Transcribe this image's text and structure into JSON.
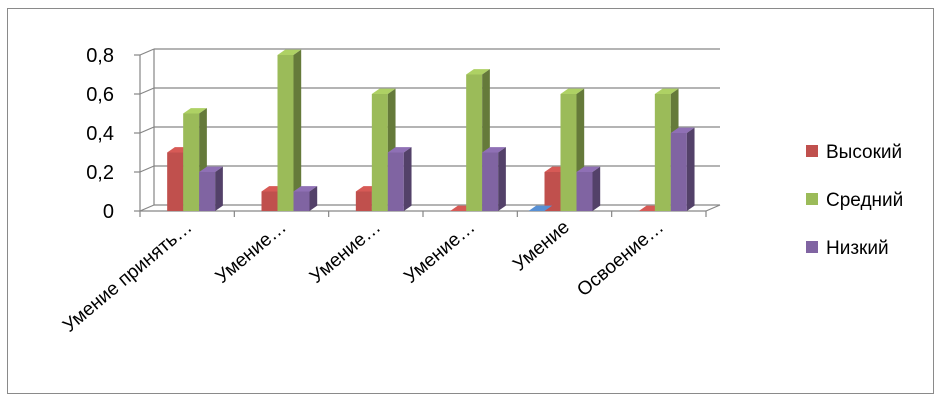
{
  "chart_data": {
    "type": "bar",
    "style": "3d-clustered-column",
    "categories": [
      "Умение принять…",
      "Умение…",
      "Умение…",
      "Умение…",
      "Умение",
      "Освоение…"
    ],
    "series": [
      {
        "name": "Высокий",
        "color": "#c0504d",
        "values": [
          0.3,
          0.1,
          0.1,
          0,
          0.2,
          0
        ]
      },
      {
        "name": "Средний",
        "color": "#9bbb59",
        "values": [
          0.5,
          0.8,
          0.6,
          0.7,
          0.6,
          0.6
        ]
      },
      {
        "name": "Низкий",
        "color": "#8064a2",
        "values": [
          0.2,
          0.1,
          0.3,
          0.3,
          0.2,
          0.4
        ]
      }
    ],
    "extra_marks": [
      {
        "category_index": 4,
        "color": "#4f81bd",
        "value": 0
      }
    ],
    "y_ticks": [
      "0",
      "0,2",
      "0,4",
      "0,6",
      "0,8"
    ],
    "ylim": [
      0,
      0.8
    ],
    "grid": true,
    "legend": "right"
  }
}
